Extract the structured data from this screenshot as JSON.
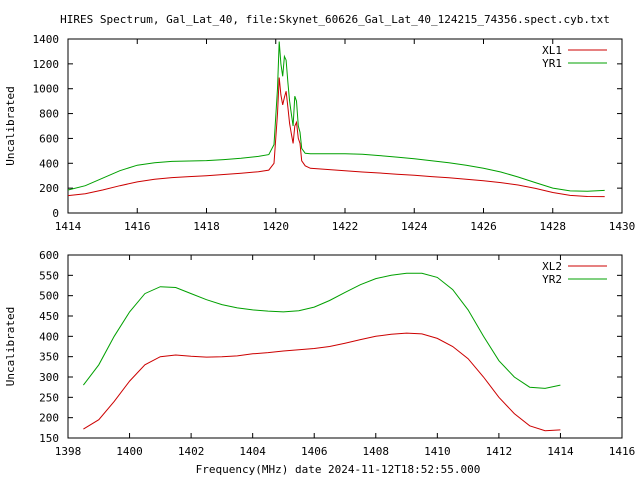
{
  "title": "HIRES Spectrum, Gal_Lat_40, file:Skynet_60626_Gal_Lat_40_124215_74356.spect.cyb.txt",
  "xlabel": "Frequency(MHz) date 2024-11-12T18:52:55.000",
  "colors": {
    "red": "#cc0000",
    "green": "#00a000",
    "axis": "#000000",
    "background": "#ffffff"
  },
  "chart_data": [
    {
      "type": "line",
      "xlim": [
        1414,
        1430
      ],
      "ylim": [
        0,
        1400
      ],
      "xticks": [
        "1414",
        "1416",
        "1418",
        "1420",
        "1422",
        "1424",
        "1426",
        "1428",
        "1430"
      ],
      "yticks": [
        "0",
        "200",
        "400",
        "600",
        "800",
        "1000",
        "1200",
        "1400"
      ],
      "ylabel": "Uncalibrated",
      "legend_position": "top-right",
      "series": [
        {
          "name": "XL1",
          "color": "#cc0000",
          "x": [
            1414.0,
            1414.5,
            1415.0,
            1415.5,
            1416.0,
            1416.5,
            1417.0,
            1417.5,
            1418.0,
            1418.5,
            1419.0,
            1419.5,
            1419.8,
            1419.95,
            1420.05,
            1420.1,
            1420.15,
            1420.2,
            1420.25,
            1420.3,
            1420.35,
            1420.4,
            1420.45,
            1420.5,
            1420.55,
            1420.6,
            1420.65,
            1420.7,
            1420.75,
            1420.85,
            1421.0,
            1421.5,
            1422.0,
            1422.5,
            1423.0,
            1423.5,
            1424.0,
            1424.5,
            1425.0,
            1425.5,
            1426.0,
            1426.5,
            1427.0,
            1427.5,
            1428.0,
            1428.5,
            1429.0,
            1429.5
          ],
          "y": [
            140,
            155,
            185,
            220,
            250,
            272,
            285,
            293,
            300,
            310,
            320,
            332,
            345,
            400,
            800,
            1090,
            950,
            870,
            930,
            980,
            850,
            720,
            640,
            560,
            700,
            730,
            600,
            560,
            420,
            380,
            360,
            350,
            340,
            330,
            322,
            312,
            303,
            293,
            283,
            272,
            260,
            245,
            225,
            198,
            165,
            142,
            133,
            132
          ]
        },
        {
          "name": "YR1",
          "color": "#00a000",
          "x": [
            1414.0,
            1414.5,
            1415.0,
            1415.5,
            1416.0,
            1416.5,
            1417.0,
            1417.5,
            1418.0,
            1418.5,
            1419.0,
            1419.5,
            1419.8,
            1419.95,
            1420.05,
            1420.1,
            1420.15,
            1420.2,
            1420.25,
            1420.3,
            1420.35,
            1420.4,
            1420.45,
            1420.5,
            1420.55,
            1420.6,
            1420.65,
            1420.7,
            1420.75,
            1420.85,
            1421.0,
            1421.5,
            1422.0,
            1422.5,
            1423.0,
            1423.5,
            1424.0,
            1424.5,
            1425.0,
            1425.5,
            1426.0,
            1426.5,
            1427.0,
            1427.5,
            1428.0,
            1428.5,
            1429.0,
            1429.5
          ],
          "y": [
            185,
            220,
            280,
            340,
            385,
            405,
            415,
            418,
            422,
            430,
            440,
            455,
            470,
            550,
            1000,
            1380,
            1200,
            1100,
            1260,
            1230,
            1050,
            900,
            800,
            700,
            940,
            900,
            700,
            650,
            520,
            480,
            476,
            476,
            477,
            472,
            462,
            450,
            436,
            420,
            405,
            385,
            360,
            330,
            290,
            245,
            200,
            178,
            175,
            182
          ]
        }
      ]
    },
    {
      "type": "line",
      "xlim": [
        1398,
        1416
      ],
      "ylim": [
        150,
        600
      ],
      "xticks": [
        "1398",
        "1400",
        "1402",
        "1404",
        "1406",
        "1408",
        "1410",
        "1412",
        "1414",
        "1416"
      ],
      "yticks": [
        "150",
        "200",
        "250",
        "300",
        "350",
        "400",
        "450",
        "500",
        "550",
        "600"
      ],
      "ylabel": "Uncalibrated",
      "xlabel": "Frequency(MHz) date 2024-11-12T18:52:55.000",
      "legend_position": "top-right",
      "series": [
        {
          "name": "XL2",
          "color": "#cc0000",
          "x": [
            1398.5,
            1399.0,
            1399.5,
            1400.0,
            1400.5,
            1401.0,
            1401.5,
            1402.0,
            1402.5,
            1403.0,
            1403.5,
            1404.0,
            1404.5,
            1405.0,
            1405.5,
            1406.0,
            1406.5,
            1407.0,
            1407.5,
            1408.0,
            1408.5,
            1409.0,
            1409.5,
            1410.0,
            1410.5,
            1411.0,
            1411.5,
            1412.0,
            1412.5,
            1413.0,
            1413.5,
            1414.0
          ],
          "y": [
            172,
            195,
            240,
            290,
            330,
            350,
            354,
            351,
            349,
            350,
            352,
            357,
            360,
            364,
            367,
            370,
            375,
            383,
            392,
            400,
            405,
            408,
            406,
            395,
            375,
            345,
            300,
            250,
            210,
            180,
            168,
            170
          ]
        },
        {
          "name": "YR2",
          "color": "#00a000",
          "x": [
            1398.5,
            1399.0,
            1399.5,
            1400.0,
            1400.5,
            1401.0,
            1401.5,
            1402.0,
            1402.5,
            1403.0,
            1403.5,
            1404.0,
            1404.5,
            1405.0,
            1405.5,
            1406.0,
            1406.5,
            1407.0,
            1407.5,
            1408.0,
            1408.5,
            1409.0,
            1409.5,
            1410.0,
            1410.5,
            1411.0,
            1411.5,
            1412.0,
            1412.5,
            1413.0,
            1413.5,
            1414.0
          ],
          "y": [
            280,
            330,
            400,
            460,
            505,
            522,
            520,
            505,
            490,
            478,
            470,
            465,
            462,
            460,
            463,
            472,
            488,
            508,
            527,
            542,
            550,
            555,
            555,
            545,
            515,
            465,
            400,
            340,
            300,
            275,
            272,
            280
          ]
        }
      ]
    }
  ]
}
